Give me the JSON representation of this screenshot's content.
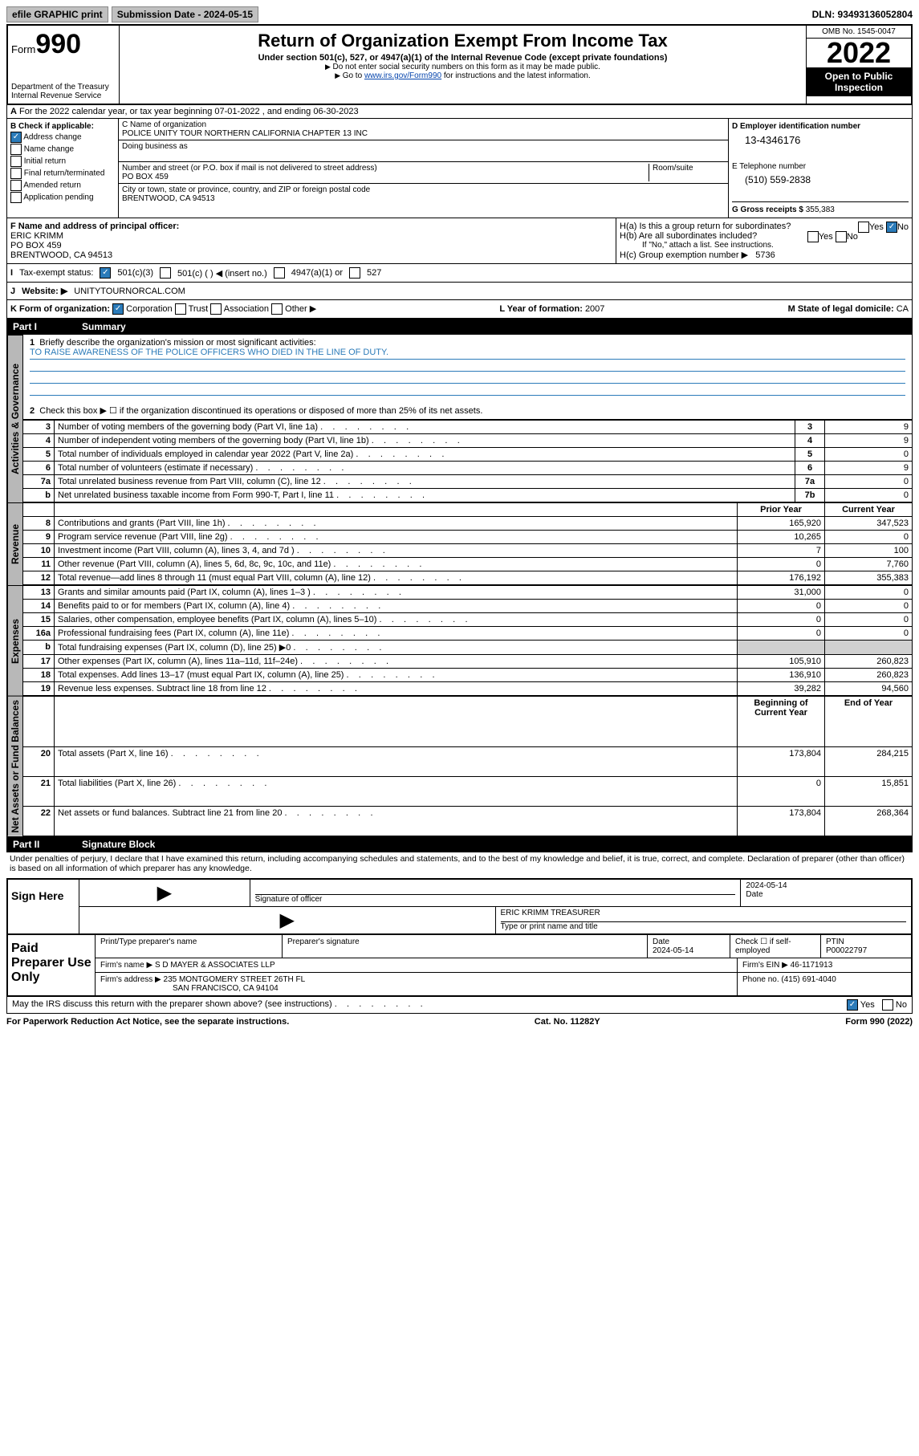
{
  "topbar": {
    "efile": "efile GRAPHIC print",
    "submission": "Submission Date - 2024-05-15",
    "dln": "DLN: 93493136052804"
  },
  "header": {
    "form_label": "Form",
    "form_num": "990",
    "dept": "Department of the Treasury",
    "irs": "Internal Revenue Service",
    "title": "Return of Organization Exempt From Income Tax",
    "sub": "Under section 501(c), 527, or 4947(a)(1) of the Internal Revenue Code (except private foundations)",
    "note1": "Do not enter social security numbers on this form as it may be made public.",
    "note2_pre": "Go to ",
    "note2_link": "www.irs.gov/Form990",
    "note2_post": " for instructions and the latest information.",
    "omb": "OMB No. 1545-0047",
    "year": "2022",
    "inspect": "Open to Public Inspection"
  },
  "row_a": "For the 2022 calendar year, or tax year beginning 07-01-2022    , and ending 06-30-2023",
  "section_b": {
    "title": "B Check if applicable:",
    "items": [
      "Address change",
      "Name change",
      "Initial return",
      "Final return/terminated",
      "Amended return",
      "Application pending"
    ],
    "checked": [
      true,
      false,
      false,
      false,
      false,
      false
    ]
  },
  "section_c": {
    "name_lbl": "C Name of organization",
    "name": "POLICE UNITY TOUR NORTHERN CALIFORNIA CHAPTER 13 INC",
    "dba_lbl": "Doing business as",
    "dba": "",
    "addr_lbl": "Number and street (or P.O. box if mail is not delivered to street address)",
    "room_lbl": "Room/suite",
    "addr": "PO BOX 459",
    "city_lbl": "City or town, state or province, country, and ZIP or foreign postal code",
    "city": "BRENTWOOD, CA  94513"
  },
  "section_d": {
    "ein_lbl": "D Employer identification number",
    "ein": "13-4346176",
    "phone_lbl": "E Telephone number",
    "phone": "(510) 559-2838",
    "gross_lbl": "G Gross receipts $",
    "gross": "355,383"
  },
  "section_f": {
    "lbl": "F Name and address of principal officer:",
    "name": "ERIC KRIMM",
    "addr": "PO BOX 459",
    "city": "BRENTWOOD, CA  94513"
  },
  "section_h": {
    "a": "H(a)  Is this a group return for subordinates?",
    "a_yes": "Yes",
    "a_no": "No",
    "b": "H(b)  Are all subordinates included?",
    "b_note": "If \"No,\" attach a list. See instructions.",
    "c": "H(c)  Group exemption number ▶",
    "c_val": "5736"
  },
  "row_i": {
    "lbl": "Tax-exempt status:",
    "opts": [
      "501(c)(3)",
      "501(c) (  ) ◀ (insert no.)",
      "4947(a)(1) or",
      "527"
    ]
  },
  "row_j": {
    "lbl": "Website: ▶",
    "val": "UNITYTOURNORCAL.COM"
  },
  "row_k": {
    "lbl": "K Form of organization:",
    "opts": [
      "Corporation",
      "Trust",
      "Association",
      "Other ▶"
    ],
    "l_lbl": "L Year of formation:",
    "l_val": "2007",
    "m_lbl": "M State of legal domicile:",
    "m_val": "CA"
  },
  "part1": {
    "title": "Part I",
    "name": "Summary",
    "q1": "Briefly describe the organization's mission or most significant activities:",
    "mission": "TO RAISE AWARENESS OF THE POLICE OFFICERS WHO DIED IN THE LINE OF DUTY.",
    "q2": "Check this box ▶ ☐  if the organization discontinued its operations or disposed of more than 25% of its net assets."
  },
  "gov_lines": [
    {
      "n": "3",
      "t": "Number of voting members of the governing body (Part VI, line 1a)",
      "box": "3",
      "v": "9"
    },
    {
      "n": "4",
      "t": "Number of independent voting members of the governing body (Part VI, line 1b)",
      "box": "4",
      "v": "9"
    },
    {
      "n": "5",
      "t": "Total number of individuals employed in calendar year 2022 (Part V, line 2a)",
      "box": "5",
      "v": "0"
    },
    {
      "n": "6",
      "t": "Total number of volunteers (estimate if necessary)",
      "box": "6",
      "v": "9"
    },
    {
      "n": "7a",
      "t": "Total unrelated business revenue from Part VIII, column (C), line 12",
      "box": "7a",
      "v": "0"
    },
    {
      "n": "b",
      "t": "Net unrelated business taxable income from Form 990-T, Part I, line 11",
      "box": "7b",
      "v": "0"
    }
  ],
  "rev_hdr": {
    "prior": "Prior Year",
    "curr": "Current Year"
  },
  "rev_lines": [
    {
      "n": "8",
      "t": "Contributions and grants (Part VIII, line 1h)",
      "p": "165,920",
      "c": "347,523"
    },
    {
      "n": "9",
      "t": "Program service revenue (Part VIII, line 2g)",
      "p": "10,265",
      "c": "0"
    },
    {
      "n": "10",
      "t": "Investment income (Part VIII, column (A), lines 3, 4, and 7d )",
      "p": "7",
      "c": "100"
    },
    {
      "n": "11",
      "t": "Other revenue (Part VIII, column (A), lines 5, 6d, 8c, 9c, 10c, and 11e)",
      "p": "0",
      "c": "7,760"
    },
    {
      "n": "12",
      "t": "Total revenue—add lines 8 through 11 (must equal Part VIII, column (A), line 12)",
      "p": "176,192",
      "c": "355,383"
    }
  ],
  "exp_lines": [
    {
      "n": "13",
      "t": "Grants and similar amounts paid (Part IX, column (A), lines 1–3 )",
      "p": "31,000",
      "c": "0"
    },
    {
      "n": "14",
      "t": "Benefits paid to or for members (Part IX, column (A), line 4)",
      "p": "0",
      "c": "0"
    },
    {
      "n": "15",
      "t": "Salaries, other compensation, employee benefits (Part IX, column (A), lines 5–10)",
      "p": "0",
      "c": "0"
    },
    {
      "n": "16a",
      "t": "Professional fundraising fees (Part IX, column (A), line 11e)",
      "p": "0",
      "c": "0"
    },
    {
      "n": "b",
      "t": "Total fundraising expenses (Part IX, column (D), line 25) ▶0",
      "p": "",
      "c": "",
      "shade": true
    },
    {
      "n": "17",
      "t": "Other expenses (Part IX, column (A), lines 11a–11d, 11f–24e)",
      "p": "105,910",
      "c": "260,823"
    },
    {
      "n": "18",
      "t": "Total expenses. Add lines 13–17 (must equal Part IX, column (A), line 25)",
      "p": "136,910",
      "c": "260,823"
    },
    {
      "n": "19",
      "t": "Revenue less expenses. Subtract line 18 from line 12",
      "p": "39,282",
      "c": "94,560"
    }
  ],
  "net_hdr": {
    "begin": "Beginning of Current Year",
    "end": "End of Year"
  },
  "net_lines": [
    {
      "n": "20",
      "t": "Total assets (Part X, line 16)",
      "p": "173,804",
      "c": "284,215"
    },
    {
      "n": "21",
      "t": "Total liabilities (Part X, line 26)",
      "p": "0",
      "c": "15,851"
    },
    {
      "n": "22",
      "t": "Net assets or fund balances. Subtract line 21 from line 20",
      "p": "173,804",
      "c": "268,364"
    }
  ],
  "vert_labels": {
    "gov": "Activities & Governance",
    "rev": "Revenue",
    "exp": "Expenses",
    "net": "Net Assets or Fund Balances"
  },
  "part2": {
    "title": "Part II",
    "name": "Signature Block",
    "penalty": "Under penalties of perjury, I declare that I have examined this return, including accompanying schedules and statements, and to the best of my knowledge and belief, it is true, correct, and complete. Declaration of preparer (other than officer) is based on all information of which preparer has any knowledge."
  },
  "sign": {
    "here": "Sign Here",
    "sig_lbl": "Signature of officer",
    "date_lbl": "Date",
    "date": "2024-05-14",
    "name": "ERIC KRIMM  TREASURER",
    "name_lbl": "Type or print name and title"
  },
  "paid": {
    "here": "Paid Preparer Use Only",
    "col1": "Print/Type preparer's name",
    "col2": "Preparer's signature",
    "col3": "Date",
    "date": "2024-05-14",
    "col4": "Check ☐ if self-employed",
    "col5_lbl": "PTIN",
    "ptin": "P00022797",
    "firm_lbl": "Firm's name    ▶",
    "firm": "S D MAYER & ASSOCIATES LLP",
    "ein_lbl": "Firm's EIN ▶",
    "ein": "46-1171913",
    "addr_lbl": "Firm's address ▶",
    "addr1": "235 MONTGOMERY STREET 26TH FL",
    "addr2": "SAN FRANCISCO, CA  94104",
    "phone_lbl": "Phone no.",
    "phone": "(415) 691-4040"
  },
  "may_discuss": "May the IRS discuss this return with the preparer shown above? (see instructions)",
  "footer": {
    "pra": "For Paperwork Reduction Act Notice, see the separate instructions.",
    "cat": "Cat. No. 11282Y",
    "form": "Form 990 (2022)"
  }
}
